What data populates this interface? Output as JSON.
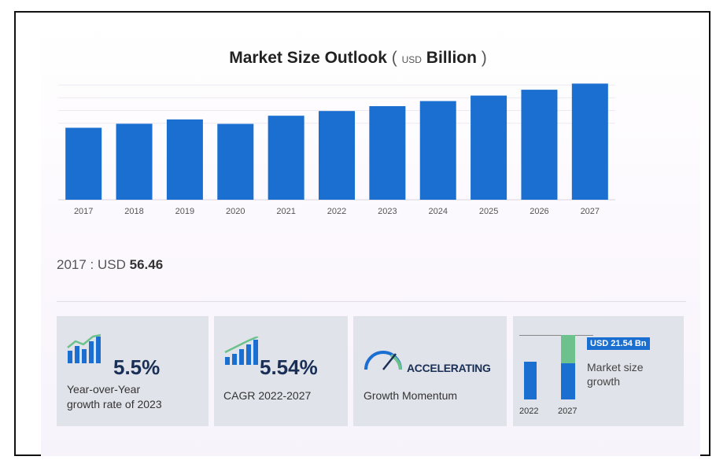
{
  "title": {
    "main": "Market Size Outlook",
    "unit_prefix": "USD",
    "unit": "Billion"
  },
  "base_label": {
    "prefix": "2017 : USD",
    "value": "56.46"
  },
  "chart_data": {
    "type": "bar",
    "title": "Market Size Outlook (USD Billion)",
    "categories": [
      "2017",
      "2018",
      "2019",
      "2020",
      "2021",
      "2022",
      "2023",
      "2024",
      "2025",
      "2026",
      "2027"
    ],
    "values": [
      56.46,
      59.6,
      63.0,
      59.5,
      65.9,
      69.6,
      73.4,
      77.4,
      81.7,
      86.3,
      91.1
    ],
    "ylim": [
      0,
      95
    ],
    "grid": true,
    "bar_color": "#1b6fd0"
  },
  "cards": [
    {
      "value": "5.5%",
      "label_line1": "Year-over-Year",
      "label_line2": "growth rate of 2023",
      "icon": "growth-bars-icon"
    },
    {
      "value": "5.54%",
      "label_line1": "CAGR 2022-2027",
      "icon": "rising-bars-icon"
    },
    {
      "value": "ACCELERATING",
      "label_line1": "Growth Momentum",
      "icon": "speedometer-icon"
    },
    {
      "badge": "USD 21.54 Bn",
      "label_line1": "Market size",
      "label_line2": "growth",
      "years": [
        "2022",
        "2027"
      ],
      "mini_values": [
        69.6,
        91.1
      ]
    }
  ],
  "colors": {
    "bar": "#1b6fd0",
    "growth": "#6cc18c",
    "card_bg": "#e1e3ea",
    "text_dark": "#1a2f55"
  }
}
